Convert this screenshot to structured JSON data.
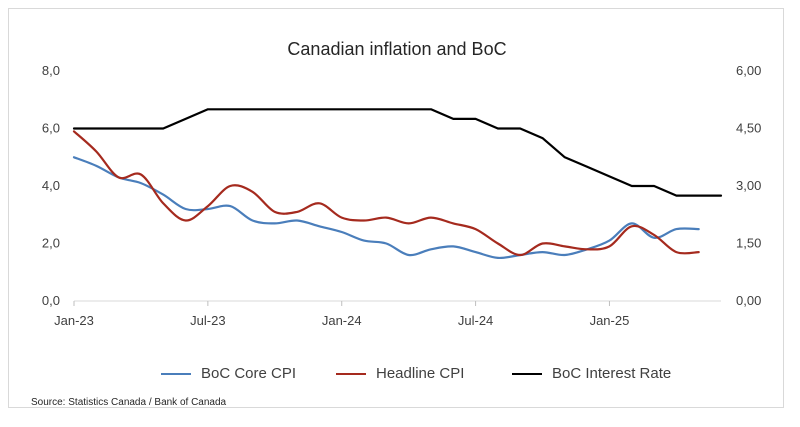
{
  "chart_data": {
    "type": "line",
    "title": "Canadian inflation and BoC",
    "xlabel": "",
    "ylabel": "",
    "x": [
      "2023-01",
      "2023-02",
      "2023-03",
      "2023-04",
      "2023-05",
      "2023-06",
      "2023-07",
      "2023-08",
      "2023-09",
      "2023-10",
      "2023-11",
      "2023-12",
      "2024-01",
      "2024-02",
      "2024-03",
      "2024-04",
      "2024-05",
      "2024-06",
      "2024-07",
      "2024-08",
      "2024-09",
      "2024-10",
      "2024-11",
      "2024-12",
      "2025-01",
      "2025-02",
      "2025-03",
      "2025-04",
      "2025-05",
      "2025-06"
    ],
    "x_tick_labels": [
      "Jan-23",
      "Jul-23",
      "Jan-24",
      "Jul-24",
      "Jan-25"
    ],
    "y_left_ticks": [
      "0,0",
      "2,0",
      "4,0",
      "6,0",
      "8,0"
    ],
    "y_right_ticks": [
      "0,00",
      "1,50",
      "3,00",
      "4,50",
      "6,00"
    ],
    "ylim_left": [
      0,
      8
    ],
    "ylim_right": [
      0,
      6
    ],
    "grid": false,
    "legend_position": "bottom",
    "series": [
      {
        "name": "BoC Core CPI",
        "axis": "left",
        "color": "#4a7ebb",
        "values": [
          5.0,
          4.7,
          4.3,
          4.1,
          3.7,
          3.2,
          3.2,
          3.3,
          2.8,
          2.7,
          2.8,
          2.6,
          2.4,
          2.1,
          2.0,
          1.6,
          1.8,
          1.9,
          1.7,
          1.5,
          1.6,
          1.7,
          1.6,
          1.8,
          2.1,
          2.7,
          2.2,
          2.5,
          2.5,
          null
        ]
      },
      {
        "name": "Headline CPI",
        "axis": "left",
        "color": "#a52a1e",
        "values": [
          5.9,
          5.2,
          4.3,
          4.4,
          3.4,
          2.8,
          3.3,
          4.0,
          3.8,
          3.1,
          3.1,
          3.4,
          2.9,
          2.8,
          2.9,
          2.7,
          2.9,
          2.7,
          2.5,
          2.0,
          1.6,
          2.0,
          1.9,
          1.8,
          1.9,
          2.6,
          2.3,
          1.7,
          1.7,
          null
        ]
      },
      {
        "name": "BoC Interest Rate",
        "axis": "right",
        "color": "#000000",
        "values": [
          4.5,
          4.5,
          4.5,
          4.5,
          4.5,
          4.75,
          5.0,
          5.0,
          5.0,
          5.0,
          5.0,
          5.0,
          5.0,
          5.0,
          5.0,
          5.0,
          5.0,
          4.75,
          4.75,
          4.5,
          4.5,
          4.25,
          3.75,
          3.5,
          3.25,
          3.0,
          3.0,
          2.75,
          2.75,
          2.75
        ]
      }
    ]
  },
  "source_note": "Source: Statistics Canada / Bank of Canada"
}
